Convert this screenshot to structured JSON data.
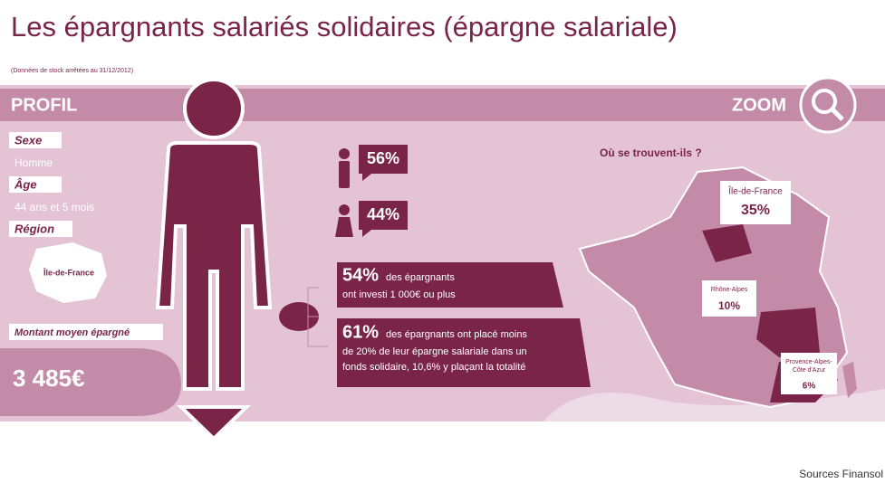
{
  "header": {
    "title": "Les épargnants salariés solidaires (épargne salariale)",
    "subtitle": "(Données de stock arrêtées au 31/12/2012)"
  },
  "profil": {
    "heading": "PROFIL",
    "sexe_label": "Sexe",
    "sexe": "Homme",
    "age_label": "Âge",
    "age": "44 ans et 5 mois",
    "region_label": "Région",
    "region": "Île-de-France",
    "montant_label": "Montant moyen épargné",
    "montant": "3 485€"
  },
  "gender": {
    "men": "56%",
    "women": "44%"
  },
  "facts": [
    {
      "value": "54%",
      "lines": [
        "des épargnants",
        "ont investi 1 000€ ou plus"
      ]
    },
    {
      "value": "61%",
      "lines": [
        "des épargnants ont placé moins",
        "de 20% de leur épargne salariale dans un",
        "fonds solidaire, 10,6% y plaçant la totalité"
      ]
    }
  ],
  "zoom": {
    "heading": "ZOOM",
    "question": "Où se trouvent-ils ?",
    "regions": [
      {
        "name": [
          "Île-de-France"
        ],
        "value": "35%"
      },
      {
        "name": [
          "Rhône-Alpes"
        ],
        "value": "10%"
      },
      {
        "name": [
          "Provence-Alpes-",
          "Côte d'Azur"
        ],
        "value": "6%"
      }
    ]
  },
  "footer": {
    "source": "Sources Finansol"
  }
}
